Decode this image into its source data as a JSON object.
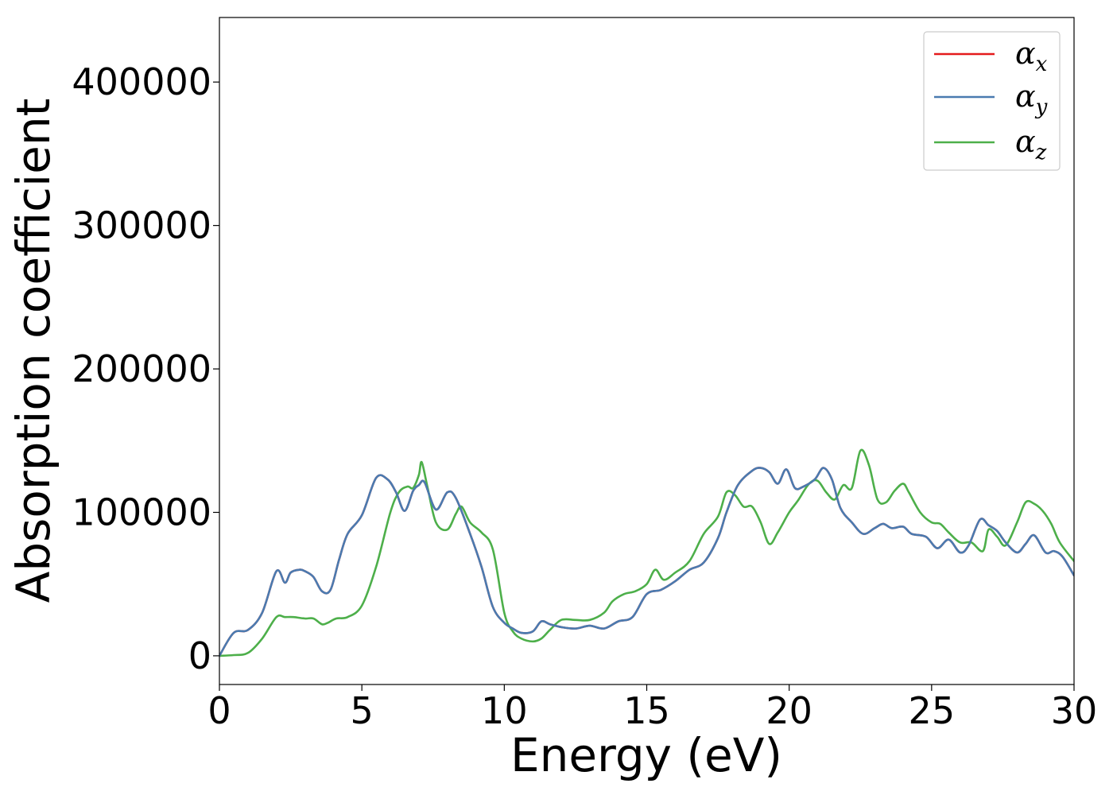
{
  "chart_data": {
    "type": "line",
    "title": "",
    "xlabel": "Energy (eV)",
    "ylabel": "Absorption coefficient",
    "xlim": [
      0,
      30
    ],
    "ylim": [
      -20000,
      445000
    ],
    "xticks": [
      0,
      5,
      10,
      15,
      20,
      25,
      30
    ],
    "xtick_labels": [
      "0",
      "5",
      "10",
      "15",
      "20",
      "25",
      "30"
    ],
    "yticks": [
      0,
      100000,
      200000,
      300000,
      400000
    ],
    "ytick_labels": [
      "0",
      "100000",
      "200000",
      "300000",
      "400000"
    ],
    "grid": false,
    "legend": {
      "position": "top-right"
    },
    "series": [
      {
        "name": "α_x",
        "name_base": "α",
        "name_sub": "x",
        "color": "#e41a1c",
        "x": [
          0,
          0.5,
          1,
          1.5,
          2,
          2.3,
          2.5,
          2.8,
          3,
          3.3,
          3.6,
          3.9,
          4.2,
          4.5,
          5,
          5.5,
          5.9,
          6.2,
          6.5,
          6.8,
          7.0,
          7.2,
          7.6,
          8.0,
          8.3,
          8.8,
          9.2,
          9.6,
          10.0,
          10.3,
          10.6,
          11.0,
          11.3,
          11.6,
          12.0,
          12.5,
          13.0,
          13.5,
          14.0,
          14.5,
          15.0,
          15.5,
          16.0,
          16.5,
          17.0,
          17.5,
          17.8,
          18.2,
          18.7,
          19.0,
          19.3,
          19.6,
          19.9,
          20.2,
          20.5,
          20.9,
          21.2,
          21.5,
          21.8,
          22.2,
          22.6,
          23.0,
          23.3,
          23.6,
          24.0,
          24.3,
          24.8,
          25.2,
          25.6,
          26.0,
          26.3,
          26.7,
          27.0,
          27.3,
          27.6,
          28.0,
          28.3,
          28.6,
          29.0,
          29.3,
          29.6,
          30.0
        ],
        "y": [
          0,
          16000,
          18000,
          30000,
          59000,
          51000,
          58000,
          60000,
          59000,
          55000,
          45000,
          46000,
          67000,
          85000,
          98000,
          124000,
          123000,
          114000,
          101000,
          115000,
          119000,
          121000,
          102000,
          114000,
          110000,
          85000,
          62000,
          34000,
          23000,
          19000,
          16000,
          17000,
          24000,
          22000,
          20000,
          19000,
          21000,
          19000,
          24000,
          27000,
          43000,
          46000,
          52000,
          60000,
          65000,
          82000,
          100000,
          119000,
          129000,
          131000,
          128000,
          120000,
          130000,
          117000,
          118000,
          123000,
          131000,
          123000,
          103000,
          93000,
          85000,
          89000,
          92000,
          89000,
          90000,
          85000,
          83000,
          75000,
          81000,
          72000,
          77000,
          95000,
          91000,
          87000,
          79000,
          72000,
          78000,
          84000,
          72000,
          73000,
          69000,
          56000
        ]
      },
      {
        "name": "α_y",
        "name_base": "α",
        "name_sub": "y",
        "color": "#4a7bb0",
        "x": [
          0,
          0.5,
          1,
          1.5,
          2,
          2.3,
          2.5,
          2.8,
          3,
          3.3,
          3.6,
          3.9,
          4.2,
          4.5,
          5,
          5.5,
          5.9,
          6.2,
          6.5,
          6.8,
          7.0,
          7.2,
          7.6,
          8.0,
          8.3,
          8.8,
          9.2,
          9.6,
          10.0,
          10.3,
          10.6,
          11.0,
          11.3,
          11.6,
          12.0,
          12.5,
          13.0,
          13.5,
          14.0,
          14.5,
          15.0,
          15.5,
          16.0,
          16.5,
          17.0,
          17.5,
          17.8,
          18.2,
          18.7,
          19.0,
          19.3,
          19.6,
          19.9,
          20.2,
          20.5,
          20.9,
          21.2,
          21.5,
          21.8,
          22.2,
          22.6,
          23.0,
          23.3,
          23.6,
          24.0,
          24.3,
          24.8,
          25.2,
          25.6,
          26.0,
          26.3,
          26.7,
          27.0,
          27.3,
          27.6,
          28.0,
          28.3,
          28.6,
          29.0,
          29.3,
          29.6,
          30.0
        ],
        "y": [
          0,
          16000,
          18000,
          30000,
          59000,
          51000,
          58000,
          60000,
          59000,
          55000,
          45000,
          46000,
          67000,
          85000,
          98000,
          124000,
          123000,
          114000,
          101000,
          115000,
          119000,
          121000,
          102000,
          114000,
          110000,
          85000,
          62000,
          34000,
          23000,
          19000,
          16000,
          17000,
          24000,
          22000,
          20000,
          19000,
          21000,
          19000,
          24000,
          27000,
          43000,
          46000,
          52000,
          60000,
          65000,
          82000,
          100000,
          119000,
          129000,
          131000,
          128000,
          120000,
          130000,
          117000,
          118000,
          123000,
          131000,
          123000,
          103000,
          93000,
          85000,
          89000,
          92000,
          89000,
          90000,
          85000,
          83000,
          75000,
          81000,
          72000,
          77000,
          95000,
          91000,
          87000,
          79000,
          72000,
          78000,
          84000,
          72000,
          73000,
          69000,
          56000
        ]
      },
      {
        "name": "α_z",
        "name_base": "α",
        "name_sub": "z",
        "color": "#4daf4a",
        "x": [
          0,
          0.5,
          1,
          1.5,
          2,
          2.3,
          2.6,
          3.0,
          3.3,
          3.6,
          3.8,
          4.1,
          4.5,
          5.0,
          5.5,
          6.0,
          6.3,
          6.6,
          6.8,
          7.0,
          7.1,
          7.3,
          7.6,
          8.0,
          8.3,
          8.5,
          8.8,
          9.2,
          9.6,
          10.0,
          10.3,
          10.6,
          11.0,
          11.3,
          11.6,
          12.0,
          12.5,
          13.0,
          13.5,
          13.8,
          14.2,
          14.6,
          15.0,
          15.3,
          15.6,
          16.0,
          16.5,
          17.0,
          17.5,
          17.8,
          18.1,
          18.4,
          18.7,
          19.0,
          19.3,
          19.6,
          20.0,
          20.3,
          20.7,
          21.0,
          21.3,
          21.6,
          21.9,
          22.2,
          22.5,
          22.8,
          23.1,
          23.4,
          23.7,
          24.0,
          24.2,
          24.6,
          25.0,
          25.3,
          25.6,
          26.0,
          26.4,
          26.8,
          27.0,
          27.3,
          27.6,
          28.0,
          28.3,
          28.6,
          28.9,
          29.2,
          29.5,
          30.0
        ],
        "y": [
          0,
          500,
          2000,
          12000,
          27000,
          27000,
          27000,
          26000,
          26000,
          22000,
          23000,
          26000,
          27000,
          35000,
          62000,
          100000,
          114000,
          118000,
          117000,
          126000,
          135000,
          118000,
          93000,
          88000,
          99000,
          104000,
          93000,
          86000,
          74000,
          30000,
          17000,
          12000,
          10000,
          12000,
          18000,
          25000,
          25000,
          25000,
          30000,
          38000,
          43000,
          45000,
          50000,
          60000,
          53000,
          58000,
          66000,
          85000,
          97000,
          114000,
          112000,
          104000,
          104000,
          93000,
          78000,
          86000,
          100000,
          108000,
          120000,
          122000,
          114000,
          109000,
          119000,
          117000,
          143000,
          133000,
          109000,
          107000,
          115000,
          120000,
          114000,
          100000,
          93000,
          92000,
          86000,
          79000,
          79000,
          73000,
          88000,
          83000,
          77000,
          93000,
          107000,
          106000,
          101000,
          92000,
          79000,
          66000
        ]
      }
    ]
  }
}
